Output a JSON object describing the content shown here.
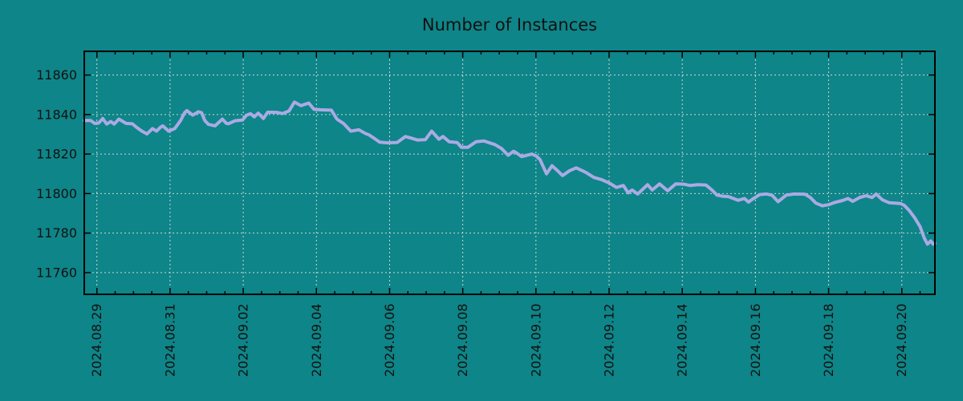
{
  "title": "Number of Instances",
  "colors": {
    "background": "#0e8588",
    "line": "#aaaae4",
    "grid": "#ccd6d6",
    "axis": "#000000",
    "text": "#111111"
  },
  "chart_data": {
    "type": "line",
    "title": "Number of Instances",
    "xlabel": "",
    "ylabel": "",
    "legend_position": "none",
    "grid": "dashed major gridlines, both axes",
    "x_axis": {
      "unit": "date, decimal days relative to 2024.08.29 00:00",
      "xlim": [
        -0.345,
        22.905
      ],
      "major_tick_positions": [
        0,
        2,
        4,
        6,
        8,
        10,
        12,
        14,
        16,
        18,
        20,
        22
      ],
      "major_tick_labels": [
        "2024.08.29",
        "2024.08.31",
        "2024.09.02",
        "2024.09.04",
        "2024.09.06",
        "2024.09.08",
        "2024.09.10",
        "2024.09.12",
        "2024.09.14",
        "2024.09.16",
        "2024.09.18",
        "2024.09.20"
      ],
      "minor_tick_step": 0.5,
      "label_rotation_deg": -90
    },
    "y_axis": {
      "ylim": [
        11749,
        11872
      ],
      "major_tick_positions": [
        11760,
        11780,
        11800,
        11820,
        11840,
        11860
      ],
      "major_tick_labels": [
        "11760",
        "11780",
        "11800",
        "11820",
        "11840",
        "11860"
      ]
    },
    "series": [
      {
        "name": "instances",
        "color": "#aaaae4",
        "points": [
          [
            -0.34,
            11837.0
          ],
          [
            -0.17,
            11837.0
          ],
          [
            -0.06,
            11835.5
          ],
          [
            0.05,
            11835.7
          ],
          [
            0.16,
            11838.0
          ],
          [
            0.27,
            11835.2
          ],
          [
            0.38,
            11836.5
          ],
          [
            0.47,
            11835.2
          ],
          [
            0.6,
            11837.7
          ],
          [
            0.8,
            11835.5
          ],
          [
            0.97,
            11835.3
          ],
          [
            1.08,
            11833.6
          ],
          [
            1.23,
            11831.6
          ],
          [
            1.37,
            11830.2
          ],
          [
            1.52,
            11832.9
          ],
          [
            1.63,
            11831.6
          ],
          [
            1.74,
            11833.6
          ],
          [
            1.8,
            11834.3
          ],
          [
            1.96,
            11831.6
          ],
          [
            2.13,
            11832.9
          ],
          [
            2.29,
            11837.0
          ],
          [
            2.4,
            11841.0
          ],
          [
            2.46,
            11842.0
          ],
          [
            2.62,
            11839.7
          ],
          [
            2.77,
            11841.4
          ],
          [
            2.86,
            11841.0
          ],
          [
            2.95,
            11837.0
          ],
          [
            3.05,
            11835.0
          ],
          [
            3.23,
            11834.3
          ],
          [
            3.43,
            11837.7
          ],
          [
            3.54,
            11835.5
          ],
          [
            3.6,
            11835.4
          ],
          [
            3.78,
            11836.9
          ],
          [
            3.98,
            11837.2
          ],
          [
            4.09,
            11839.7
          ],
          [
            4.2,
            11840.4
          ],
          [
            4.3,
            11838.8
          ],
          [
            4.41,
            11840.7
          ],
          [
            4.55,
            11838.0
          ],
          [
            4.67,
            11841.2
          ],
          [
            4.92,
            11841.1
          ],
          [
            5.07,
            11840.5
          ],
          [
            5.25,
            11841.8
          ],
          [
            5.4,
            11846.3
          ],
          [
            5.58,
            11844.5
          ],
          [
            5.79,
            11845.8
          ],
          [
            5.93,
            11842.7
          ],
          [
            6.1,
            11842.4
          ],
          [
            6.41,
            11842.2
          ],
          [
            6.56,
            11837.7
          ],
          [
            6.74,
            11835.5
          ],
          [
            6.94,
            11831.6
          ],
          [
            7.16,
            11832.3
          ],
          [
            7.33,
            11830.5
          ],
          [
            7.44,
            11829.7
          ],
          [
            7.6,
            11827.7
          ],
          [
            7.73,
            11826.0
          ],
          [
            7.95,
            11825.7
          ],
          [
            8.21,
            11825.9
          ],
          [
            8.43,
            11828.9
          ],
          [
            8.58,
            11828.1
          ],
          [
            8.76,
            11827.1
          ],
          [
            8.98,
            11827.3
          ],
          [
            9.15,
            11831.6
          ],
          [
            9.35,
            11827.5
          ],
          [
            9.46,
            11828.9
          ],
          [
            9.63,
            11826.2
          ],
          [
            9.85,
            11825.8
          ],
          [
            9.96,
            11823.5
          ],
          [
            10.14,
            11823.4
          ],
          [
            10.36,
            11826.2
          ],
          [
            10.58,
            11826.6
          ],
          [
            10.88,
            11824.8
          ],
          [
            11.06,
            11822.8
          ],
          [
            11.24,
            11819.4
          ],
          [
            11.39,
            11821.4
          ],
          [
            11.46,
            11820.7
          ],
          [
            11.61,
            11818.7
          ],
          [
            11.78,
            11819.5
          ],
          [
            11.89,
            11820.0
          ],
          [
            12.0,
            11819.1
          ],
          [
            12.11,
            11817.3
          ],
          [
            12.29,
            11810.0
          ],
          [
            12.44,
            11814.1
          ],
          [
            12.59,
            11811.6
          ],
          [
            12.73,
            11809.1
          ],
          [
            12.92,
            11811.6
          ],
          [
            13.1,
            11813.0
          ],
          [
            13.36,
            11810.8
          ],
          [
            13.58,
            11808.2
          ],
          [
            13.8,
            11807.0
          ],
          [
            14.02,
            11805.2
          ],
          [
            14.2,
            11803.1
          ],
          [
            14.39,
            11804.1
          ],
          [
            14.52,
            11800.4
          ],
          [
            14.63,
            11801.8
          ],
          [
            14.78,
            11799.8
          ],
          [
            15.05,
            11804.5
          ],
          [
            15.18,
            11801.8
          ],
          [
            15.38,
            11804.9
          ],
          [
            15.6,
            11801.4
          ],
          [
            15.82,
            11804.9
          ],
          [
            16.06,
            11804.7
          ],
          [
            16.22,
            11804.1
          ],
          [
            16.43,
            11804.5
          ],
          [
            16.65,
            11804.3
          ],
          [
            16.81,
            11801.8
          ],
          [
            16.95,
            11799.2
          ],
          [
            17.09,
            11798.7
          ],
          [
            17.26,
            11798.5
          ],
          [
            17.53,
            11796.6
          ],
          [
            17.7,
            11797.5
          ],
          [
            17.81,
            11795.7
          ],
          [
            17.92,
            11797.2
          ],
          [
            18.12,
            11799.5
          ],
          [
            18.3,
            11799.8
          ],
          [
            18.45,
            11799.2
          ],
          [
            18.62,
            11795.9
          ],
          [
            18.84,
            11799.2
          ],
          [
            19.06,
            11799.8
          ],
          [
            19.35,
            11799.7
          ],
          [
            19.5,
            11798.0
          ],
          [
            19.65,
            11795.2
          ],
          [
            19.83,
            11793.8
          ],
          [
            20.0,
            11794.4
          ],
          [
            20.16,
            11795.5
          ],
          [
            20.38,
            11796.5
          ],
          [
            20.53,
            11797.5
          ],
          [
            20.66,
            11796.1
          ],
          [
            20.86,
            11798.1
          ],
          [
            21.03,
            11798.9
          ],
          [
            21.19,
            11798.0
          ],
          [
            21.3,
            11799.8
          ],
          [
            21.47,
            11796.8
          ],
          [
            21.65,
            11795.4
          ],
          [
            21.96,
            11795.0
          ],
          [
            22.07,
            11794.0
          ],
          [
            22.2,
            11791.5
          ],
          [
            22.35,
            11787.8
          ],
          [
            22.5,
            11783.3
          ],
          [
            22.61,
            11777.6
          ],
          [
            22.7,
            11774.4
          ],
          [
            22.79,
            11776.0
          ],
          [
            22.86,
            11774.4
          ],
          [
            22.9,
            11774.8
          ]
        ]
      }
    ]
  }
}
